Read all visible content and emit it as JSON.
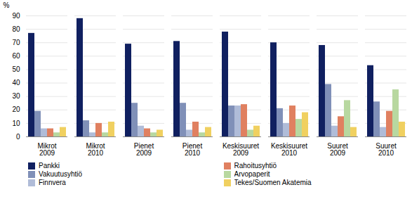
{
  "chart_data": {
    "type": "bar",
    "ylabel": "%",
    "categories": [
      "Mikrot\n2009",
      "Mikrot\n2010",
      "Pienet\n2009",
      "Pienet\n2010",
      "Keskisuuret\n2009",
      "Keskisuuret\n2010",
      "Suuret\n2009",
      "Suuret\n2010"
    ],
    "series": [
      {
        "name": "Pankki",
        "color": "#102060",
        "values": [
          77,
          88,
          69,
          71,
          78,
          70,
          68,
          53
        ]
      },
      {
        "name": "Vakuutusyhtiö",
        "color": "#8090b8",
        "values": [
          19,
          12,
          25,
          25,
          23,
          21,
          39,
          26
        ]
      },
      {
        "name": "Finnvera",
        "color": "#b0bcd8",
        "values": [
          6,
          3,
          8,
          5,
          23,
          10,
          8,
          7
        ]
      },
      {
        "name": "Rahoitusyhtiö",
        "color": "#e08060",
        "values": [
          6,
          10,
          6,
          11,
          24,
          23,
          15,
          19
        ]
      },
      {
        "name": "Arvopaperit",
        "color": "#b8d8a0",
        "values": [
          3,
          3,
          3,
          3,
          5,
          13,
          27,
          35
        ]
      },
      {
        "name": "Tekes/Suomen Akatemia",
        "color": "#f0d060",
        "values": [
          7,
          11,
          5,
          7,
          8,
          18,
          7,
          11
        ]
      }
    ],
    "ylim": [
      0,
      90
    ],
    "yticks": [
      0,
      10,
      20,
      30,
      40,
      50,
      60,
      70,
      80,
      90
    ],
    "grid": true,
    "legend": "bottom"
  }
}
